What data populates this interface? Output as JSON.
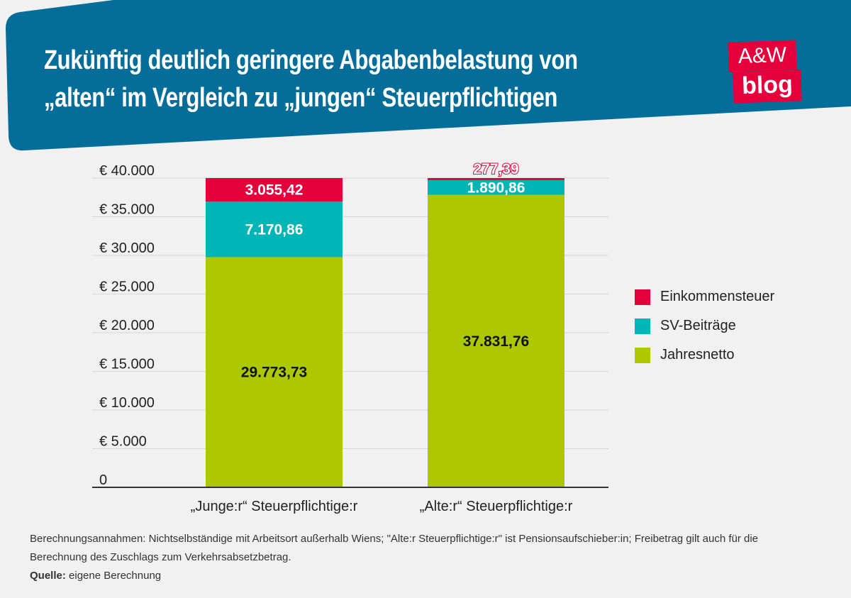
{
  "header": {
    "title_line1": "Zukünftig deutlich geringere Abgabenbelastung von",
    "title_line2": "„alten“ im Vergleich zu „jungen“ Steuerpflichtigen",
    "logo_top": "A&W",
    "logo_bottom": "blog",
    "color": "#046d99",
    "logo_color": "#e4003b"
  },
  "chart_data": {
    "type": "stacked-bar",
    "categories": [
      "„Junge:r“ Steuerpflichtige:r",
      "„Alte:r“ Steuerpflichtige:r"
    ],
    "series": [
      {
        "name": "Jahresnetto",
        "color": "#adc800",
        "values": [
          29773.73,
          37831.76
        ],
        "labels": [
          "29.773,73",
          "37.831,76"
        ]
      },
      {
        "name": "SV-Beiträge",
        "color": "#00b5b5",
        "values": [
          7170.86,
          1890.86
        ],
        "labels": [
          "7.170,86",
          "1.890,86"
        ]
      },
      {
        "name": "Einkommensteuer",
        "color": "#e4003b",
        "values": [
          3055.42,
          277.39
        ],
        "labels": [
          "3.055,42",
          "277,39"
        ]
      }
    ],
    "yticks": [
      "0",
      "€ 5.000",
      "€ 10.000",
      "€ 15.000",
      "€ 20.000",
      "€ 25.000",
      "€ 30.000",
      "€ 35.000",
      "€ 40.000"
    ],
    "ylim": [
      0,
      40000
    ],
    "grid": true,
    "legend_position": "right"
  },
  "legend": [
    "Einkommensteuer",
    "SV-Beiträge",
    "Jahresnetto"
  ],
  "footer": {
    "note_line1": "Berechnungsannahmen: Nichtselbständige mit Arbeitsort außerhalb Wiens; \"Alte:r Steuerpflichtige:r\" ist Pensionsaufschieber:in; Freibetrag gilt auch für die",
    "note_line2": "Berechnung des Zuschlags zum Verkehrsabsetzbetrag.",
    "source_label": "Quelle:",
    "source_text": " eigene Berechnung"
  }
}
